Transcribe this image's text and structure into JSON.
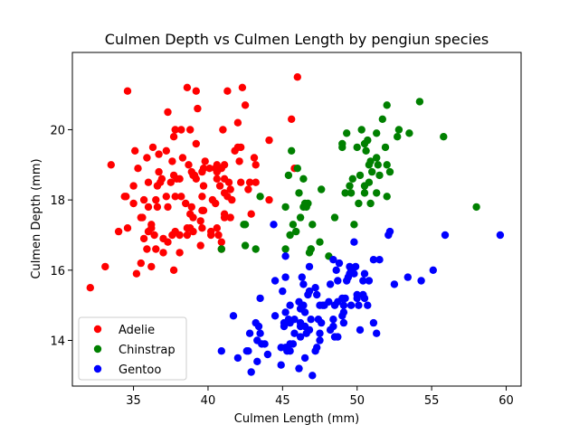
{
  "chart_data": {
    "type": "scatter",
    "title": "Culmen Depth vs Culmen Length by pengiun species",
    "xlabel": "Culmen Length (mm)",
    "ylabel": "Culmen Depth (mm)",
    "xlim": [
      30.9,
      61.0
    ],
    "ylim": [
      12.7,
      22.2
    ],
    "xticks": [
      35,
      40,
      45,
      50,
      55,
      60
    ],
    "yticks": [
      14,
      16,
      18,
      20
    ],
    "grid": false,
    "legend_position": "lower-left",
    "series": [
      {
        "name": "Adelie",
        "color": "#ff0000",
        "points": [
          [
            32.1,
            15.5
          ],
          [
            33.1,
            16.1
          ],
          [
            33.5,
            19.0
          ],
          [
            34.0,
            17.1
          ],
          [
            34.4,
            18.1
          ],
          [
            34.5,
            18.1
          ],
          [
            34.6,
            21.1
          ],
          [
            34.6,
            17.2
          ],
          [
            35.0,
            17.9
          ],
          [
            35.0,
            18.4
          ],
          [
            35.1,
            19.4
          ],
          [
            35.2,
            15.9
          ],
          [
            35.3,
            18.9
          ],
          [
            35.5,
            16.2
          ],
          [
            35.5,
            17.5
          ],
          [
            35.6,
            17.5
          ],
          [
            35.7,
            16.9
          ],
          [
            35.7,
            18.0
          ],
          [
            35.9,
            16.6
          ],
          [
            35.9,
            19.2
          ],
          [
            36.0,
            17.1
          ],
          [
            36.0,
            17.8
          ],
          [
            36.0,
            18.5
          ],
          [
            36.2,
            16.1
          ],
          [
            36.2,
            17.2
          ],
          [
            36.2,
            17.3
          ],
          [
            36.3,
            19.5
          ],
          [
            36.4,
            17.0
          ],
          [
            36.5,
            16.6
          ],
          [
            36.5,
            18.0
          ],
          [
            36.6,
            17.8
          ],
          [
            36.6,
            18.4
          ],
          [
            36.7,
            18.8
          ],
          [
            36.7,
            19.3
          ],
          [
            36.8,
            18.5
          ],
          [
            36.9,
            18.6
          ],
          [
            37.0,
            16.5
          ],
          [
            37.0,
            16.9
          ],
          [
            37.2,
            18.1
          ],
          [
            37.2,
            19.4
          ],
          [
            37.3,
            16.8
          ],
          [
            37.3,
            17.8
          ],
          [
            37.3,
            20.5
          ],
          [
            37.5,
            18.5
          ],
          [
            37.6,
            17.0
          ],
          [
            37.6,
            19.1
          ],
          [
            37.7,
            16.0
          ],
          [
            37.7,
            18.7
          ],
          [
            37.7,
            19.8
          ],
          [
            37.8,
            17.1
          ],
          [
            37.8,
            18.1
          ],
          [
            37.8,
            20.0
          ],
          [
            37.9,
            18.6
          ],
          [
            38.1,
            16.5
          ],
          [
            38.1,
            17.0
          ],
          [
            38.1,
            18.6
          ],
          [
            38.2,
            18.1
          ],
          [
            38.2,
            20.0
          ],
          [
            38.3,
            19.2
          ],
          [
            38.5,
            17.9
          ],
          [
            38.6,
            17.0
          ],
          [
            38.6,
            17.2
          ],
          [
            38.6,
            21.2
          ],
          [
            38.7,
            19.0
          ],
          [
            38.8,
            17.2
          ],
          [
            38.8,
            17.6
          ],
          [
            38.8,
            20.0
          ],
          [
            38.9,
            17.8
          ],
          [
            38.9,
            18.8
          ],
          [
            39.0,
            17.1
          ],
          [
            39.0,
            17.5
          ],
          [
            39.0,
            18.7
          ],
          [
            39.1,
            18.7
          ],
          [
            39.2,
            18.6
          ],
          [
            39.2,
            19.6
          ],
          [
            39.2,
            21.1
          ],
          [
            39.3,
            20.6
          ],
          [
            39.5,
            16.7
          ],
          [
            39.5,
            17.4
          ],
          [
            39.6,
            17.2
          ],
          [
            39.6,
            17.7
          ],
          [
            39.6,
            18.1
          ],
          [
            39.6,
            18.8
          ],
          [
            39.7,
            17.7
          ],
          [
            39.7,
            18.4
          ],
          [
            39.7,
            18.9
          ],
          [
            39.8,
            19.1
          ],
          [
            40.1,
            18.9
          ],
          [
            40.2,
            17.0
          ],
          [
            40.2,
            17.1
          ],
          [
            40.3,
            18.0
          ],
          [
            40.5,
            17.9
          ],
          [
            40.5,
            18.9
          ],
          [
            40.6,
            17.2
          ],
          [
            40.6,
            18.6
          ],
          [
            40.6,
            18.8
          ],
          [
            40.6,
            19.0
          ],
          [
            40.7,
            17.0
          ],
          [
            40.8,
            18.4
          ],
          [
            40.9,
            16.6
          ],
          [
            40.9,
            16.8
          ],
          [
            40.9,
            18.9
          ],
          [
            41.0,
            20.0
          ],
          [
            41.1,
            17.5
          ],
          [
            41.1,
            17.6
          ],
          [
            41.1,
            18.2
          ],
          [
            41.1,
            18.6
          ],
          [
            41.1,
            19.0
          ],
          [
            41.3,
            18.1
          ],
          [
            41.3,
            21.1
          ],
          [
            41.4,
            18.5
          ],
          [
            41.5,
            17.5
          ],
          [
            41.5,
            18.3
          ],
          [
            41.6,
            18.0
          ],
          [
            41.8,
            19.4
          ],
          [
            42.0,
            19.5
          ],
          [
            42.0,
            20.2
          ],
          [
            42.1,
            19.1
          ],
          [
            42.2,
            18.5
          ],
          [
            42.2,
            19.5
          ],
          [
            42.3,
            21.2
          ],
          [
            42.5,
            20.7
          ],
          [
            42.7,
            18.3
          ],
          [
            42.8,
            18.5
          ],
          [
            42.9,
            17.6
          ],
          [
            43.1,
            19.2
          ],
          [
            43.2,
            19.0
          ],
          [
            43.2,
            18.5
          ],
          [
            44.1,
            18.0
          ],
          [
            44.1,
            19.7
          ],
          [
            45.6,
            20.3
          ],
          [
            45.8,
            18.9
          ],
          [
            46.0,
            21.5
          ]
        ]
      },
      {
        "name": "Chinstrap",
        "color": "#008000",
        "points": [
          [
            40.9,
            16.6
          ],
          [
            42.4,
            17.3
          ],
          [
            42.5,
            16.7
          ],
          [
            42.5,
            17.3
          ],
          [
            43.2,
            16.6
          ],
          [
            43.5,
            18.1
          ],
          [
            45.2,
            16.6
          ],
          [
            45.2,
            17.8
          ],
          [
            45.4,
            18.7
          ],
          [
            45.5,
            17.0
          ],
          [
            45.6,
            19.4
          ],
          [
            45.7,
            17.3
          ],
          [
            45.9,
            17.1
          ],
          [
            46.0,
            18.9
          ],
          [
            46.1,
            18.2
          ],
          [
            46.2,
            17.5
          ],
          [
            46.4,
            17.8
          ],
          [
            46.4,
            18.6
          ],
          [
            46.5,
            17.9
          ],
          [
            46.6,
            17.8
          ],
          [
            46.7,
            17.9
          ],
          [
            46.8,
            16.5
          ],
          [
            46.9,
            16.6
          ],
          [
            47.0,
            17.3
          ],
          [
            47.5,
            16.8
          ],
          [
            48.1,
            16.4
          ],
          [
            48.5,
            17.5
          ],
          [
            49.0,
            19.5
          ],
          [
            49.0,
            19.6
          ],
          [
            49.2,
            18.2
          ],
          [
            49.3,
            19.9
          ],
          [
            49.5,
            18.4
          ],
          [
            49.6,
            18.2
          ],
          [
            49.7,
            18.6
          ],
          [
            49.8,
            17.3
          ],
          [
            50.0,
            19.5
          ],
          [
            50.1,
            17.9
          ],
          [
            50.2,
            18.7
          ],
          [
            50.3,
            20.0
          ],
          [
            50.5,
            18.4
          ],
          [
            50.5,
            19.6
          ],
          [
            50.6,
            19.4
          ],
          [
            50.7,
            19.7
          ],
          [
            50.8,
            18.5
          ],
          [
            50.8,
            19.0
          ],
          [
            50.9,
            17.9
          ],
          [
            50.9,
            19.1
          ],
          [
            51.0,
            18.8
          ],
          [
            51.3,
            18.2
          ],
          [
            51.3,
            19.2
          ],
          [
            51.3,
            19.9
          ],
          [
            51.4,
            19.0
          ],
          [
            51.5,
            18.7
          ],
          [
            51.7,
            20.3
          ],
          [
            51.9,
            19.5
          ],
          [
            52.0,
            18.1
          ],
          [
            52.0,
            19.0
          ],
          [
            52.0,
            20.7
          ],
          [
            52.2,
            18.8
          ],
          [
            52.7,
            19.8
          ],
          [
            52.8,
            20.0
          ],
          [
            53.5,
            19.9
          ],
          [
            54.2,
            20.8
          ],
          [
            55.8,
            19.8
          ],
          [
            58.0,
            17.8
          ],
          [
            46.9,
            16.6
          ],
          [
            50.5,
            18.2
          ],
          [
            47.6,
            18.3
          ]
        ]
      },
      {
        "name": "Gentoo",
        "color": "#0000ff",
        "points": [
          [
            40.9,
            13.7
          ],
          [
            41.7,
            14.7
          ],
          [
            42.0,
            13.5
          ],
          [
            42.6,
            13.7
          ],
          [
            42.7,
            13.7
          ],
          [
            42.8,
            14.2
          ],
          [
            42.9,
            13.1
          ],
          [
            43.2,
            14.5
          ],
          [
            43.3,
            13.4
          ],
          [
            43.3,
            14.0
          ],
          [
            43.4,
            14.4
          ],
          [
            43.5,
            14.2
          ],
          [
            43.5,
            15.2
          ],
          [
            43.6,
            13.9
          ],
          [
            43.8,
            13.9
          ],
          [
            44.0,
            13.6
          ],
          [
            44.4,
            17.3
          ],
          [
            44.5,
            14.7
          ],
          [
            44.5,
            15.7
          ],
          [
            44.9,
            13.3
          ],
          [
            44.9,
            13.8
          ],
          [
            45.0,
            15.4
          ],
          [
            45.1,
            14.4
          ],
          [
            45.1,
            14.5
          ],
          [
            45.2,
            13.8
          ],
          [
            45.2,
            14.8
          ],
          [
            45.2,
            15.8
          ],
          [
            45.2,
            16.4
          ],
          [
            45.3,
            13.7
          ],
          [
            45.3,
            13.8
          ],
          [
            45.4,
            14.6
          ],
          [
            45.5,
            13.7
          ],
          [
            45.5,
            13.9
          ],
          [
            45.5,
            14.5
          ],
          [
            45.5,
            15.0
          ],
          [
            45.7,
            13.9
          ],
          [
            45.8,
            14.2
          ],
          [
            45.8,
            14.6
          ],
          [
            46.1,
            13.2
          ],
          [
            46.1,
            15.1
          ],
          [
            46.2,
            14.1
          ],
          [
            46.2,
            14.4
          ],
          [
            46.2,
            14.5
          ],
          [
            46.2,
            14.9
          ],
          [
            46.3,
            15.8
          ],
          [
            46.4,
            15.0
          ],
          [
            46.4,
            15.6
          ],
          [
            46.5,
            13.5
          ],
          [
            46.5,
            14.4
          ],
          [
            46.5,
            14.8
          ],
          [
            46.6,
            14.2
          ],
          [
            46.7,
            15.3
          ],
          [
            46.8,
            14.3
          ],
          [
            46.8,
            15.4
          ],
          [
            46.8,
            16.1
          ],
          [
            46.9,
            14.6
          ],
          [
            47.0,
            13.0
          ],
          [
            47.2,
            13.7
          ],
          [
            47.2,
            15.5
          ],
          [
            47.3,
            13.8
          ],
          [
            47.3,
            15.3
          ],
          [
            47.4,
            14.6
          ],
          [
            47.5,
            14.0
          ],
          [
            47.5,
            14.2
          ],
          [
            47.5,
            15.0
          ],
          [
            47.6,
            14.5
          ],
          [
            47.7,
            15.0
          ],
          [
            47.8,
            15.0
          ],
          [
            48.1,
            15.1
          ],
          [
            48.2,
            14.3
          ],
          [
            48.2,
            15.6
          ],
          [
            48.4,
            14.4
          ],
          [
            48.4,
            14.6
          ],
          [
            48.4,
            16.3
          ],
          [
            48.5,
            14.1
          ],
          [
            48.5,
            15.0
          ],
          [
            48.6,
            16.0
          ],
          [
            48.7,
            14.1
          ],
          [
            48.7,
            15.1
          ],
          [
            48.7,
            15.7
          ],
          [
            48.8,
            16.2
          ],
          [
            49.0,
            14.7
          ],
          [
            49.0,
            15.2
          ],
          [
            49.1,
            14.5
          ],
          [
            49.1,
            14.8
          ],
          [
            49.1,
            15.0
          ],
          [
            49.2,
            15.2
          ],
          [
            49.3,
            15.7
          ],
          [
            49.4,
            15.8
          ],
          [
            49.5,
            15.9
          ],
          [
            49.5,
            16.1
          ],
          [
            49.6,
            15.0
          ],
          [
            49.6,
            16.0
          ],
          [
            49.8,
            15.9
          ],
          [
            49.8,
            16.8
          ],
          [
            49.9,
            16.1
          ],
          [
            50.0,
            15.2
          ],
          [
            50.0,
            15.3
          ],
          [
            50.1,
            15.0
          ],
          [
            50.2,
            14.3
          ],
          [
            50.4,
            15.3
          ],
          [
            50.4,
            15.7
          ],
          [
            50.5,
            15.2
          ],
          [
            50.5,
            15.9
          ],
          [
            50.7,
            15.0
          ],
          [
            50.8,
            15.7
          ],
          [
            51.1,
            14.5
          ],
          [
            51.1,
            16.3
          ],
          [
            51.3,
            14.2
          ],
          [
            51.5,
            16.3
          ],
          [
            52.1,
            17.0
          ],
          [
            52.2,
            17.1
          ],
          [
            52.5,
            15.6
          ],
          [
            53.4,
            15.8
          ],
          [
            54.3,
            15.7
          ],
          [
            55.1,
            16.0
          ],
          [
            55.9,
            17.0
          ],
          [
            59.6,
            17.0
          ]
        ]
      }
    ]
  }
}
